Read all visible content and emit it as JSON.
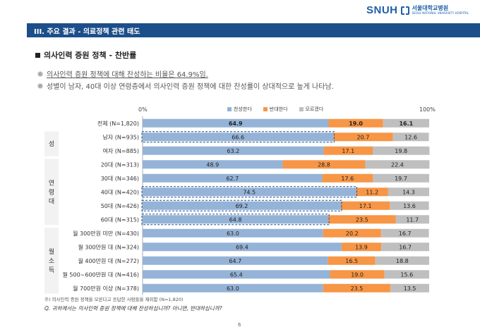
{
  "logo": {
    "text": "SNUH",
    "name_ko": "서울대학교병원",
    "name_en": "SEOUL NATIONAL UNIVERSITY HOSPITAL"
  },
  "header": {
    "title": "III. 주요 결과 - 의료정책 관련 태도"
  },
  "section_title": "의사인력 증원 정책 - 찬반률",
  "bullets": {
    "first_prefix": "의사인력 증원 정책에 대해 찬성하는 비율은 ",
    "first_value": "64.9%",
    "first_suffix": "임.",
    "second": "성별이 남자, 40대 이상 연령층에서 의사인력 증원 정책에 대한 찬성률이 상대적으로 높게 나타남."
  },
  "axis": {
    "start_label": "0%",
    "end_label": "100%"
  },
  "colors": {
    "agree": "#95b3d7",
    "disagree": "#f79646",
    "unknown": "#bfbfbf",
    "group_bg": "#f2f2f2",
    "highlight": "#1c4f8a"
  },
  "chart_data": {
    "type": "bar",
    "stacked": true,
    "orientation": "horizontal",
    "xlim": [
      0,
      100
    ],
    "series_names": [
      "찬성한다",
      "반대한다",
      "모르겠다"
    ],
    "groups": [
      {
        "name": "",
        "rows": [
          0
        ]
      },
      {
        "name": "성",
        "rows": [
          1,
          2
        ]
      },
      {
        "name": "연령대",
        "rows": [
          3,
          4,
          5,
          6,
          7
        ]
      },
      {
        "name": "월소득",
        "rows": [
          8,
          9,
          10,
          11,
          12
        ]
      }
    ],
    "rows": [
      {
        "label": "전체 (N=1,820)",
        "values": [
          64.9,
          19.0,
          16.1
        ],
        "labels": [
          "64.9",
          "19.0",
          "16.1"
        ],
        "bold": true,
        "highlight": false
      },
      {
        "label": "남자 (N=935)",
        "values": [
          66.6,
          20.7,
          12.6
        ],
        "labels": [
          "66.6",
          "20.7",
          "12.6"
        ],
        "bold": false,
        "highlight": true
      },
      {
        "label": "여자 (N=885)",
        "values": [
          63.2,
          17.1,
          19.8
        ],
        "labels": [
          "63.2",
          "17.1",
          "19.8"
        ],
        "bold": false,
        "highlight": false
      },
      {
        "label": "20대 (N=313)",
        "values": [
          48.9,
          28.8,
          22.4
        ],
        "labels": [
          "48.9",
          "28.8",
          "22.4"
        ],
        "bold": false,
        "highlight": false
      },
      {
        "label": "30대 (N=346)",
        "values": [
          62.7,
          17.6,
          19.7
        ],
        "labels": [
          "62.7",
          "17.6",
          "19.7"
        ],
        "bold": false,
        "highlight": false
      },
      {
        "label": "40대 (N=420)",
        "values": [
          74.5,
          11.2,
          14.3
        ],
        "labels": [
          "74.5",
          "11.2",
          "14.3"
        ],
        "bold": false,
        "highlight": true
      },
      {
        "label": "50대 (N=426)",
        "values": [
          69.2,
          17.1,
          13.6
        ],
        "labels": [
          "69.2",
          "17.1",
          "13.6"
        ],
        "bold": false,
        "highlight": true
      },
      {
        "label": "60대 (N=315)",
        "values": [
          64.8,
          23.5,
          11.7
        ],
        "labels": [
          "64.8",
          "23.5",
          "11.7"
        ],
        "bold": false,
        "highlight": true
      },
      {
        "label": "월 300만원 미만 (N=430)",
        "values": [
          63.0,
          20.2,
          16.7
        ],
        "labels": [
          "63.0",
          "20.2",
          "16.7"
        ],
        "bold": false,
        "highlight": false
      },
      {
        "label": "월 300만원 대 (N=324)",
        "values": [
          69.4,
          13.9,
          16.7
        ],
        "labels": [
          "69.4",
          "13.9",
          "16.7"
        ],
        "bold": false,
        "highlight": false
      },
      {
        "label": "월 400만원 대 (N=272)",
        "values": [
          64.7,
          16.5,
          18.8
        ],
        "labels": [
          "64.7",
          "16.5",
          "18.8"
        ],
        "bold": false,
        "highlight": false
      },
      {
        "label": "월 500~600만원 대 (N=416)",
        "values": [
          65.4,
          19.0,
          15.6
        ],
        "labels": [
          "65.4",
          "19.0",
          "15.6"
        ],
        "bold": false,
        "highlight": false
      },
      {
        "label": "월 700만원 이상 (N=378)",
        "values": [
          63.0,
          23.5,
          13.5
        ],
        "labels": [
          "63.0",
          "23.5",
          "13.5"
        ],
        "bold": false,
        "highlight": false
      }
    ]
  },
  "footnote": "주) 의사인력 증원 정책을 모른다고 응답한 사람들을 제외함 (N=1,820)",
  "question": "Q. 귀하께서는 의사인력 증원 정책에 대해 찬성하십니까? 아니면, 반대하십니까?",
  "page_number": "6"
}
